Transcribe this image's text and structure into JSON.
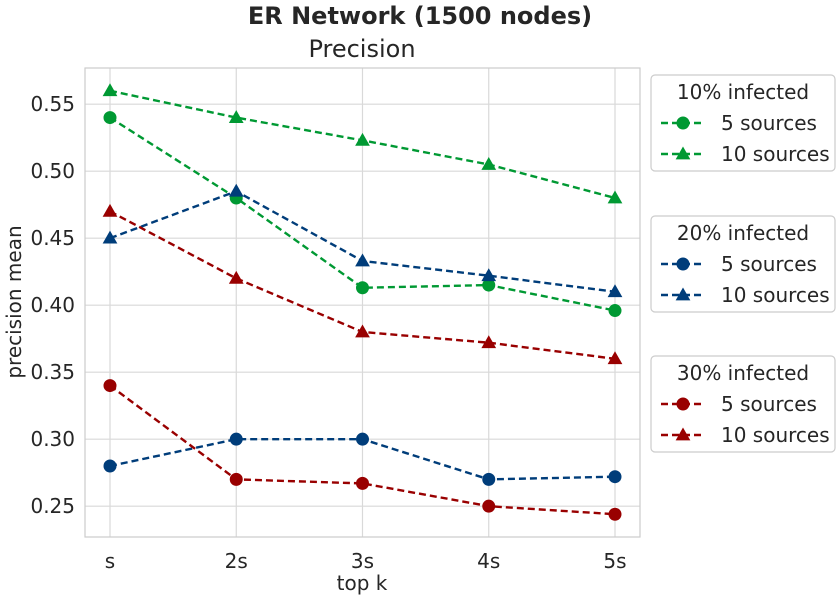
{
  "chart_data": {
    "type": "line",
    "suptitle": "ER Network (1500 nodes)",
    "title": "Precision",
    "xlabel": "top k",
    "ylabel": "precision mean",
    "categories": [
      "s",
      "2s",
      "3s",
      "4s",
      "5s"
    ],
    "ylim": [
      0.227,
      0.577
    ],
    "yticks": [
      0.25,
      0.3,
      0.35,
      0.4,
      0.45,
      0.5,
      0.55
    ],
    "ytick_labels": [
      "0.25",
      "0.30",
      "0.35",
      "0.40",
      "0.45",
      "0.50",
      "0.55"
    ],
    "grid": true,
    "legend_placement": "outside-right",
    "colors": {
      "green": "#009933",
      "blue": "#003d7a",
      "red": "#990000"
    },
    "legend_groups": [
      {
        "title": "10% infected",
        "entries": [
          {
            "label": "5 sources",
            "marker": "circle",
            "color": "#009933"
          },
          {
            "label": "10 sources",
            "marker": "triangle",
            "color": "#009933"
          }
        ]
      },
      {
        "title": "20% infected",
        "entries": [
          {
            "label": "5 sources",
            "marker": "circle",
            "color": "#003d7a"
          },
          {
            "label": "10 sources",
            "marker": "triangle",
            "color": "#003d7a"
          }
        ]
      },
      {
        "title": "30% infected",
        "entries": [
          {
            "label": "5 sources",
            "marker": "circle",
            "color": "#990000"
          },
          {
            "label": "10 sources",
            "marker": "triangle",
            "color": "#990000"
          }
        ]
      }
    ],
    "series": [
      {
        "group": "10% infected",
        "name": "5 sources",
        "marker": "circle",
        "color": "#009933",
        "values": [
          0.54,
          0.48,
          0.413,
          0.415,
          0.396
        ]
      },
      {
        "group": "10% infected",
        "name": "10 sources",
        "marker": "triangle",
        "color": "#009933",
        "values": [
          0.56,
          0.54,
          0.523,
          0.505,
          0.48
        ]
      },
      {
        "group": "20% infected",
        "name": "5 sources",
        "marker": "circle",
        "color": "#003d7a",
        "values": [
          0.28,
          0.3,
          0.3,
          0.27,
          0.272
        ]
      },
      {
        "group": "20% infected",
        "name": "10 sources",
        "marker": "triangle",
        "color": "#003d7a",
        "values": [
          0.45,
          0.485,
          0.433,
          0.422,
          0.41
        ]
      },
      {
        "group": "30% infected",
        "name": "5 sources",
        "marker": "circle",
        "color": "#990000",
        "values": [
          0.34,
          0.27,
          0.267,
          0.25,
          0.244
        ]
      },
      {
        "group": "30% infected",
        "name": "10 sources",
        "marker": "triangle",
        "color": "#990000",
        "values": [
          0.47,
          0.42,
          0.38,
          0.372,
          0.36
        ]
      }
    ]
  }
}
